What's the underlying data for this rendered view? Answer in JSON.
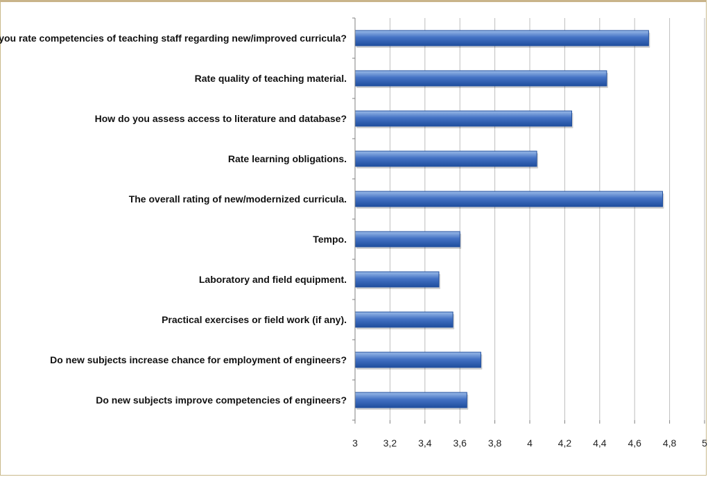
{
  "chart_data": {
    "type": "bar",
    "orientation": "horizontal",
    "title": "",
    "xlabel": "",
    "ylabel": "",
    "categories": [
      "How do you rate competencies of teaching staff regarding new/improved curricula?",
      "Rate quality of teaching material.",
      "How do you assess access to literature and database?",
      "Rate learning obligations.",
      "The overall rating of new/modernized curricula.",
      "Tempo.",
      "Laboratory and field equipment.",
      "Practical exercises or field work (if any).",
      "Do new subjects increase chance for employment of engineers?",
      "Do new subjects improve competencies of engineers?"
    ],
    "values": [
      4.68,
      4.44,
      4.24,
      4.04,
      4.76,
      3.6,
      3.48,
      3.56,
      3.72,
      3.64
    ],
    "xlim": [
      3,
      5
    ],
    "x_ticks": [
      3,
      3.2,
      3.4,
      3.6,
      3.8,
      4,
      4.2,
      4.4,
      4.6,
      4.8,
      5
    ],
    "x_tick_labels": [
      "3",
      "3,2",
      "3,4",
      "3,6",
      "3,8",
      "4",
      "4,2",
      "4,4",
      "4,6",
      "4,8",
      "5"
    ],
    "grid": "vertical",
    "bar_color": "#4472c4",
    "bar_color_dark": "#1f4e9e",
    "bar_color_light": "#9bbbe8",
    "gridline_color": "#bdbdbd",
    "axis_color": "#7f7f7f"
  }
}
